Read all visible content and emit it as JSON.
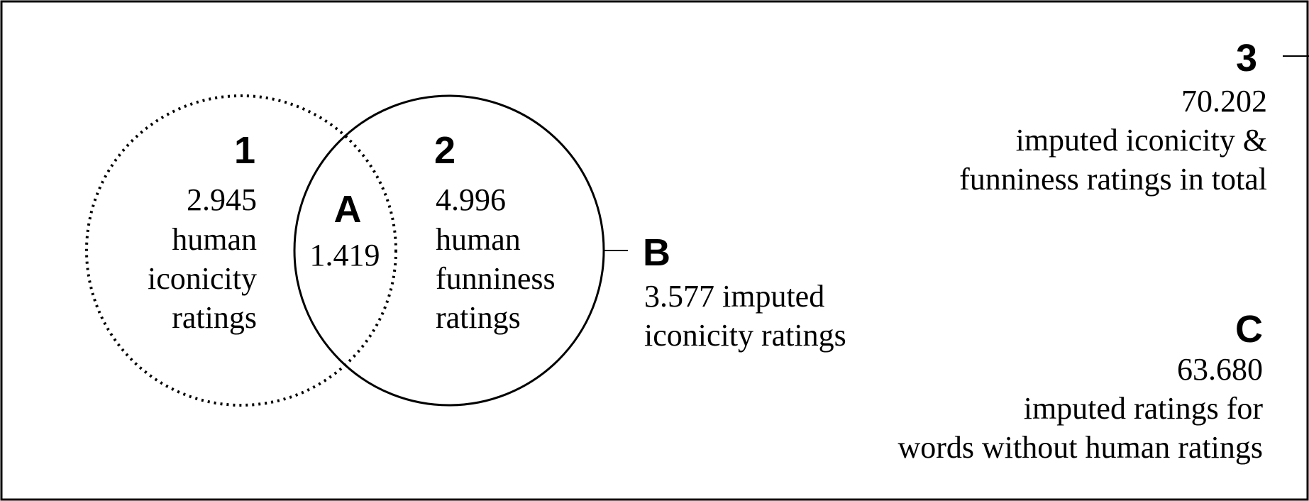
{
  "region_1": {
    "label": "1",
    "count": "2.945",
    "lines": [
      "human",
      "iconicity",
      "ratings"
    ]
  },
  "region_2": {
    "label": "2",
    "count": "4.996",
    "lines": [
      "human",
      "funniness",
      "ratings"
    ]
  },
  "region_A": {
    "label": "A",
    "count": "1.419"
  },
  "region_B": {
    "label": "B",
    "lines": [
      "3.577 imputed",
      "iconicity ratings"
    ]
  },
  "region_3": {
    "label": "3",
    "count": "70.202",
    "lines": [
      "imputed iconicity &",
      "funniness ratings in total"
    ]
  },
  "region_C": {
    "label": "C",
    "count": "63.680",
    "lines": [
      "imputed ratings for",
      "words without human ratings"
    ]
  }
}
